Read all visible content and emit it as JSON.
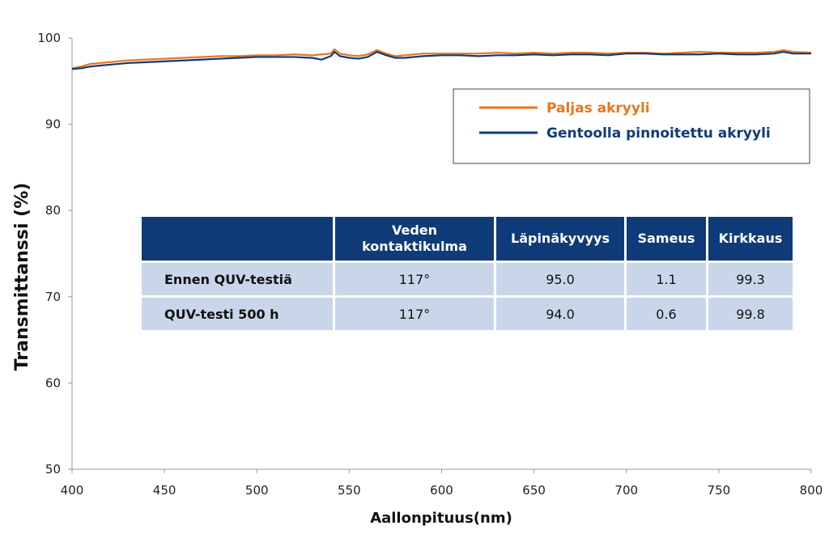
{
  "chart_data": {
    "type": "line",
    "title": "",
    "xlabel": "Aallonpituus(nm)",
    "ylabel": "Transmittanssi (%)",
    "xlim": [
      400,
      800
    ],
    "ylim": [
      50,
      100
    ],
    "x_ticks": [
      400,
      450,
      500,
      550,
      600,
      650,
      700,
      750,
      800
    ],
    "y_ticks": [
      50,
      60,
      70,
      80,
      90,
      100
    ],
    "grid": false,
    "legend_position": "top-right",
    "series": [
      {
        "name": "Paljas akryyli",
        "color": "#e8761e",
        "x": [
          400,
          405,
          410,
          420,
          430,
          440,
          450,
          460,
          470,
          480,
          490,
          500,
          510,
          520,
          530,
          535,
          540,
          542,
          545,
          550,
          555,
          560,
          565,
          570,
          575,
          580,
          590,
          600,
          610,
          620,
          630,
          640,
          650,
          660,
          670,
          680,
          690,
          700,
          710,
          720,
          730,
          740,
          750,
          760,
          770,
          780,
          785,
          790,
          800
        ],
        "y": [
          96.5,
          96.7,
          97.0,
          97.2,
          97.4,
          97.5,
          97.6,
          97.7,
          97.8,
          97.9,
          97.9,
          98.0,
          98.0,
          98.1,
          98.0,
          98.1,
          98.2,
          98.7,
          98.2,
          98.0,
          97.9,
          98.1,
          98.6,
          98.2,
          97.9,
          98.0,
          98.2,
          98.2,
          98.2,
          98.2,
          98.3,
          98.2,
          98.3,
          98.2,
          98.3,
          98.3,
          98.2,
          98.3,
          98.3,
          98.2,
          98.3,
          98.4,
          98.3,
          98.3,
          98.3,
          98.4,
          98.6,
          98.4,
          98.3
        ]
      },
      {
        "name": "Gentoolla pinnoitettu akryyli",
        "color": "#0f3b78",
        "x": [
          400,
          405,
          410,
          420,
          430,
          440,
          450,
          460,
          470,
          480,
          490,
          500,
          510,
          520,
          530,
          535,
          540,
          542,
          545,
          550,
          555,
          560,
          565,
          570,
          575,
          580,
          590,
          600,
          610,
          620,
          630,
          640,
          650,
          660,
          670,
          680,
          690,
          700,
          710,
          720,
          730,
          740,
          750,
          760,
          770,
          780,
          785,
          790,
          800
        ],
        "y": [
          96.4,
          96.5,
          96.7,
          96.9,
          97.1,
          97.2,
          97.3,
          97.4,
          97.5,
          97.6,
          97.7,
          97.8,
          97.8,
          97.8,
          97.7,
          97.5,
          97.9,
          98.4,
          97.9,
          97.7,
          97.6,
          97.8,
          98.4,
          98.0,
          97.7,
          97.7,
          97.9,
          98.0,
          98.0,
          97.9,
          98.0,
          98.0,
          98.1,
          98.0,
          98.1,
          98.1,
          98.0,
          98.2,
          98.2,
          98.1,
          98.1,
          98.1,
          98.2,
          98.1,
          98.1,
          98.2,
          98.4,
          98.2,
          98.2
        ]
      }
    ]
  },
  "table": {
    "headers": [
      "",
      "Veden kontaktikulma",
      "Läpinäkyvyys",
      "Sameus",
      "Kirkkaus"
    ],
    "header_lines": [
      "Veden",
      "kontaktikulma"
    ],
    "rows": [
      [
        "Ennen QUV-testiä",
        "117°",
        "95.0",
        "1.1",
        "99.3"
      ],
      [
        "QUV-testi 500 h",
        "117°",
        "94.0",
        "0.6",
        "99.8"
      ]
    ]
  }
}
